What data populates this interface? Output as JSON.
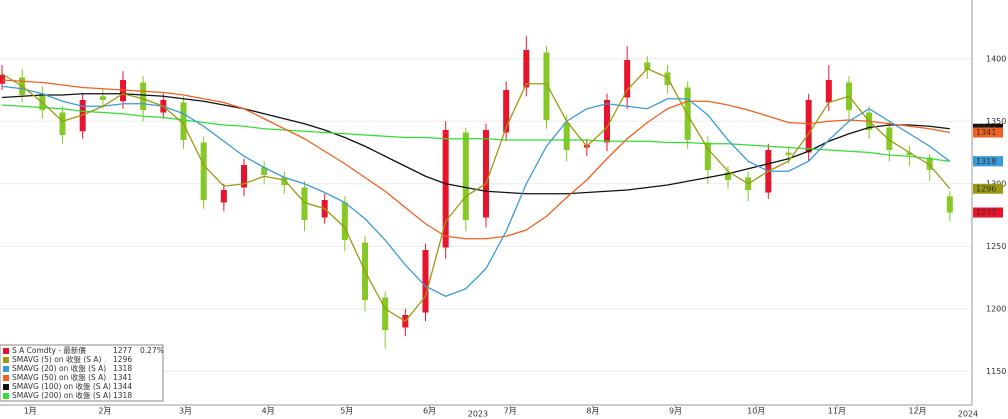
{
  "chart_data": {
    "type": "candlestick",
    "x": [
      0,
      1,
      2,
      3,
      4,
      5,
      6,
      7,
      8,
      9,
      10,
      11,
      12,
      13,
      14,
      15,
      16,
      17,
      18,
      19,
      20,
      21,
      22,
      23,
      24,
      25,
      26,
      27,
      28,
      29,
      30,
      31,
      32,
      33,
      34,
      35,
      36,
      37,
      38,
      39,
      40,
      41,
      42,
      43,
      44,
      45,
      46,
      47
    ],
    "open": [
      1380,
      1385,
      1372,
      1357,
      1342,
      1370,
      1366,
      1381,
      1357,
      1365,
      1333,
      1285,
      1297,
      1313,
      1305,
      1297,
      1273,
      1285,
      1253,
      1209,
      1185,
      1197,
      1249,
      1341,
      1273,
      1341,
      1377,
      1405,
      1349,
      1329,
      1333,
      1369,
      1397,
      1389,
      1377,
      1333,
      1309,
      1305,
      1293,
      1325,
      1325,
      1365,
      1381,
      1357,
      1345,
      1325,
      1321,
      1290
    ],
    "high": [
      1395,
      1392,
      1378,
      1362,
      1372,
      1376,
      1390,
      1386,
      1372,
      1370,
      1338,
      1300,
      1320,
      1318,
      1310,
      1302,
      1292,
      1290,
      1258,
      1214,
      1200,
      1252,
      1350,
      1345,
      1348,
      1382,
      1418,
      1410,
      1355,
      1336,
      1372,
      1410,
      1402,
      1395,
      1382,
      1338,
      1314,
      1310,
      1332,
      1330,
      1372,
      1395,
      1386,
      1362,
      1350,
      1330,
      1324,
      1294
    ],
    "low": [
      1375,
      1365,
      1352,
      1332,
      1336,
      1360,
      1360,
      1350,
      1352,
      1328,
      1280,
      1278,
      1290,
      1300,
      1292,
      1262,
      1268,
      1246,
      1198,
      1168,
      1178,
      1190,
      1240,
      1262,
      1265,
      1334,
      1370,
      1344,
      1318,
      1322,
      1326,
      1360,
      1384,
      1372,
      1328,
      1300,
      1296,
      1286,
      1288,
      1316,
      1318,
      1358,
      1350,
      1336,
      1318,
      1314,
      1302,
      1270
    ],
    "close": [
      1387,
      1371,
      1359,
      1339,
      1367,
      1367,
      1383,
      1359,
      1367,
      1335,
      1287,
      1295,
      1315,
      1307,
      1299,
      1271,
      1287,
      1255,
      1207,
      1183,
      1195,
      1247,
      1343,
      1271,
      1343,
      1375,
      1407,
      1351,
      1327,
      1331,
      1367,
      1399,
      1391,
      1379,
      1335,
      1311,
      1303,
      1295,
      1327,
      1323,
      1367,
      1383,
      1359,
      1343,
      1327,
      1323,
      1311,
      1277
    ],
    "up_color": "#e8142c",
    "down_color": "#86c926",
    "price": {
      "name": "S A Comdty - 最新價",
      "color": "#e8142c",
      "last": 1277,
      "change": {
        "value": 0.27,
        "label": "0.27%"
      }
    },
    "series": [
      {
        "name": "SMAVG (100)  on 收盤 (S A)",
        "color": "#111111",
        "last": 1344,
        "values": [
          1369,
          1370,
          1371,
          1371,
          1372,
          1372,
          1372,
          1371,
          1370,
          1368,
          1366,
          1363,
          1360,
          1356,
          1352,
          1348,
          1343,
          1337,
          1330,
          1322,
          1314,
          1306,
          1300,
          1297,
          1294,
          1293,
          1292,
          1292,
          1292,
          1293,
          1294,
          1295,
          1297,
          1299,
          1302,
          1305,
          1308,
          1312,
          1316,
          1320,
          1326,
          1334,
          1340,
          1345,
          1347,
          1347,
          1346,
          1344
        ]
      },
      {
        "name": "SMAVG (200)  on 收盤 (S A)",
        "color": "#33dd33",
        "last": 1318,
        "values": [
          1363,
          1362,
          1361,
          1360,
          1358,
          1357,
          1356,
          1354,
          1353,
          1351,
          1349,
          1347,
          1346,
          1344,
          1343,
          1342,
          1341,
          1340,
          1339,
          1338,
          1337,
          1337,
          1336,
          1336,
          1336,
          1335,
          1335,
          1335,
          1335,
          1335,
          1334,
          1334,
          1334,
          1333,
          1333,
          1332,
          1332,
          1331,
          1330,
          1329,
          1328,
          1327,
          1326,
          1325,
          1323,
          1322,
          1320,
          1318
        ]
      },
      {
        "name": "SMAVG (50)  on 收盤 (S A)",
        "color": "#f06020",
        "last": 1341,
        "values": [
          1383,
          1382,
          1381,
          1379,
          1377,
          1376,
          1375,
          1374,
          1373,
          1371,
          1368,
          1365,
          1360,
          1352,
          1344,
          1336,
          1326,
          1316,
          1305,
          1294,
          1281,
          1268,
          1258,
          1256,
          1256,
          1258,
          1263,
          1274,
          1289,
          1303,
          1320,
          1336,
          1349,
          1360,
          1366,
          1366,
          1363,
          1359,
          1354,
          1349,
          1348,
          1350,
          1351,
          1350,
          1348,
          1346,
          1344,
          1341
        ]
      },
      {
        "name": "SMAVG (20)  on 收盤 (S A)",
        "color": "#3a9ad9",
        "last": 1318,
        "values": [
          1378,
          1376,
          1372,
          1366,
          1362,
          1362,
          1364,
          1364,
          1362,
          1356,
          1346,
          1334,
          1322,
          1313,
          1305,
          1300,
          1293,
          1285,
          1272,
          1255,
          1235,
          1218,
          1210,
          1216,
          1232,
          1262,
          1300,
          1330,
          1350,
          1360,
          1364,
          1362,
          1360,
          1368,
          1368,
          1355,
          1335,
          1318,
          1310,
          1310,
          1318,
          1335,
          1350,
          1360,
          1350,
          1340,
          1330,
          1318
        ]
      },
      {
        "name": "SMAVG (5)  on 收盤 (S A)",
        "color": "#9a9a10",
        "last": 1296,
        "values": [
          1388,
          1378,
          1365,
          1350,
          1355,
          1362,
          1372,
          1368,
          1362,
          1348,
          1315,
          1298,
          1300,
          1306,
          1303,
          1285,
          1280,
          1265,
          1230,
          1200,
          1190,
          1210,
          1270,
          1290,
          1300,
          1345,
          1380,
          1380,
          1350,
          1330,
          1345,
          1375,
          1392,
          1385,
          1355,
          1328,
          1310,
          1300,
          1310,
          1318,
          1340,
          1365,
          1370,
          1350,
          1335,
          1325,
          1315,
          1296
        ]
      }
    ],
    "legend_order": [
      4,
      3,
      2,
      0,
      1
    ],
    "xlim": [
      -0.1,
      48.1
    ],
    "ylim": [
      1123,
      1447
    ],
    "yticks": [
      1150,
      1200,
      1250,
      1300,
      1350,
      1400
    ],
    "xticks": [
      {
        "value": 1.4,
        "label": "1月"
      },
      {
        "value": 5.1,
        "label": "2月"
      },
      {
        "value": 9.1,
        "label": "3月"
      },
      {
        "value": 13.2,
        "label": "4月"
      },
      {
        "value": 17.1,
        "label": "5月"
      },
      {
        "value": 21.2,
        "label": "6月"
      },
      {
        "value": 25.2,
        "label": "7月"
      },
      {
        "value": 29.3,
        "label": "8月"
      },
      {
        "value": 33.4,
        "label": "9月"
      },
      {
        "value": 37.4,
        "label": "10月"
      },
      {
        "value": 41.4,
        "label": "11月"
      },
      {
        "value": 45.4,
        "label": "12月"
      }
    ],
    "year_labels": [
      {
        "value": 23.6,
        "label": "2023"
      },
      {
        "value": 47.9,
        "label": "2024"
      }
    ],
    "grid": true
  }
}
